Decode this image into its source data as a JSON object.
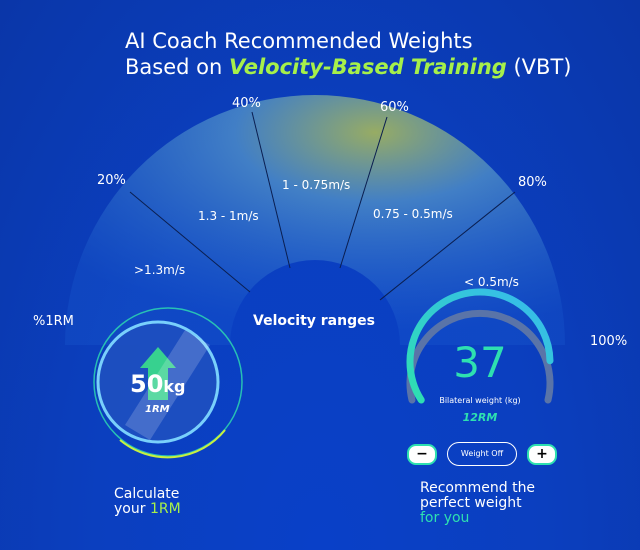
{
  "title": {
    "line1": "AI Coach Recommended Weights",
    "line2_pre": "Based on ",
    "line2_highlight": "Velocity-Based Training",
    "line2_post": " (VBT)"
  },
  "axis_label": "%1RM",
  "percent_labels": [
    "20%",
    "40%",
    "60%",
    "80%",
    "100%"
  ],
  "velocity_ranges": [
    ">1.3m/s",
    "1.3 - 1m/s",
    "1 - 0.75m/s",
    "0.75 - 0.5m/s",
    "< 0.5m/s"
  ],
  "center_label": "Velocity ranges",
  "orb": {
    "value": "50",
    "unit": "kg",
    "sub": "1RM",
    "icon": "up-arrow-icon"
  },
  "left_caption": {
    "line1": "Calculate",
    "line2_pre": "your ",
    "line2_highlight": "1RM"
  },
  "gauge": {
    "value": "37",
    "label": "Bilateral weight (kg)",
    "rm": "12RM",
    "fill_fraction": 0.72,
    "minus": "−",
    "plus": "+",
    "weight_off": "Weight Off"
  },
  "right_caption": {
    "line1": "Recommend the",
    "line2": "perfect weight",
    "line3": "for you"
  },
  "colors": {
    "background": "#0a3db8",
    "teal": "#2ee0b0",
    "lime": "#a6f04a"
  }
}
